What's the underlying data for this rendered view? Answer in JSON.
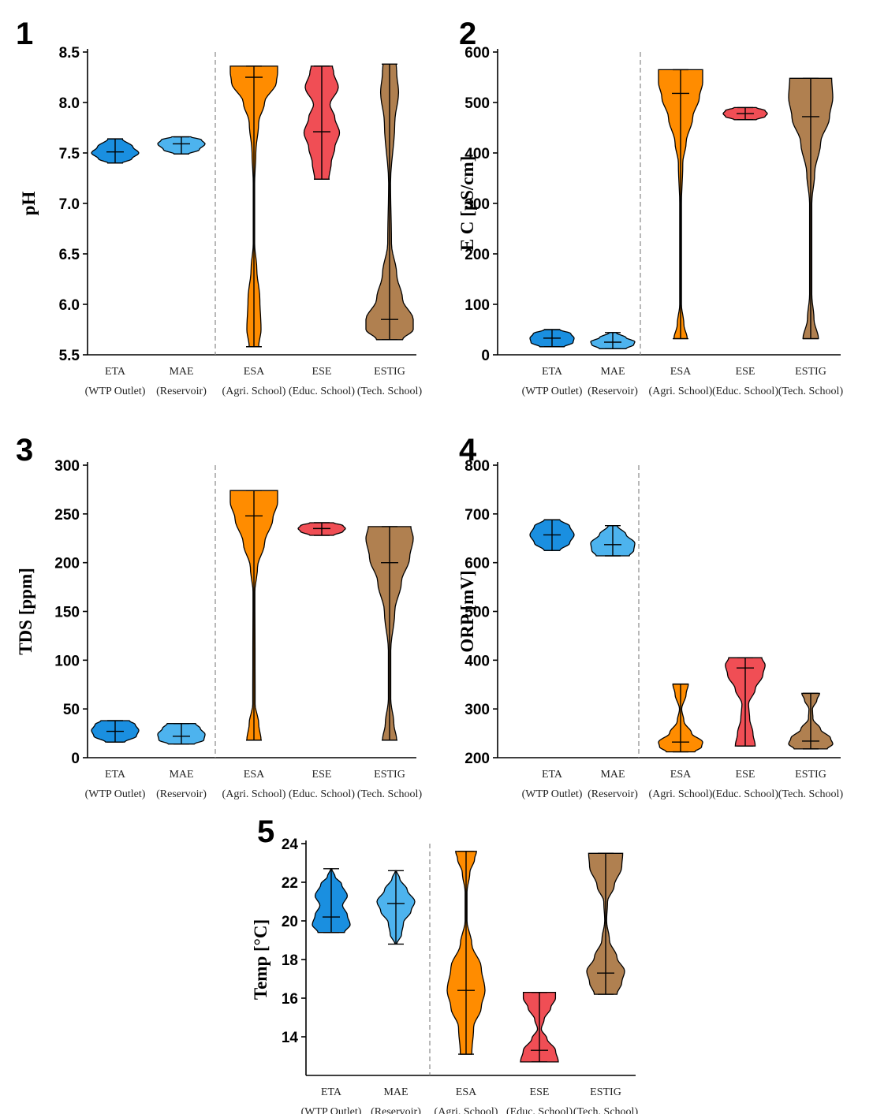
{
  "colors": {
    "ETA": "#1a8fe0",
    "MAE": "#4db3ee",
    "ESA": "#ff8c00",
    "ESE": "#f04e55",
    "ESTIG": "#b08050"
  },
  "categories": [
    {
      "code": "ETA",
      "sub": "(WTP Outlet)"
    },
    {
      "code": "MAE",
      "sub": "(Reservoir)"
    },
    {
      "code": "ESA",
      "sub": "(Agri. School)"
    },
    {
      "code": "ESE",
      "sub": "(Educ. School)"
    },
    {
      "code": "ESTIG",
      "sub": "(Tech. School)"
    }
  ],
  "chart_data": [
    {
      "type": "violin",
      "panel": "1",
      "ylabel": "pH",
      "ylim": [
        5.5,
        8.5
      ],
      "yticks": [
        "5.5",
        "6.0",
        "6.5",
        "7.0",
        "7.5",
        "8.0",
        "8.5"
      ],
      "series": [
        {
          "category": "ETA",
          "min": 7.4,
          "max": 7.64,
          "median": 7.51,
          "profile": [
            [
              7.4,
              0.3
            ],
            [
              7.44,
              0.7
            ],
            [
              7.5,
              1.0
            ],
            [
              7.56,
              0.75
            ],
            [
              7.64,
              0.3
            ]
          ]
        },
        {
          "category": "MAE",
          "min": 7.49,
          "max": 7.66,
          "median": 7.59,
          "profile": [
            [
              7.49,
              0.3
            ],
            [
              7.53,
              0.75
            ],
            [
              7.59,
              1.0
            ],
            [
              7.63,
              0.85
            ],
            [
              7.66,
              0.4
            ]
          ]
        },
        {
          "category": "ESA",
          "min": 5.58,
          "max": 8.36,
          "median": 8.25,
          "profile": [
            [
              5.58,
              0.2
            ],
            [
              5.75,
              0.3
            ],
            [
              6.05,
              0.25
            ],
            [
              6.35,
              0.12
            ],
            [
              6.6,
              0.03
            ],
            [
              7.2,
              0.03
            ],
            [
              7.5,
              0.08
            ],
            [
              7.8,
              0.2
            ],
            [
              8.0,
              0.45
            ],
            [
              8.2,
              0.95
            ],
            [
              8.3,
              1.0
            ],
            [
              8.36,
              1.0
            ]
          ]
        },
        {
          "category": "ESE",
          "min": 7.24,
          "max": 8.36,
          "median": 7.71,
          "profile": [
            [
              7.24,
              0.3
            ],
            [
              7.4,
              0.4
            ],
            [
              7.55,
              0.55
            ],
            [
              7.7,
              0.75
            ],
            [
              7.85,
              0.55
            ],
            [
              7.98,
              0.35
            ],
            [
              8.15,
              0.7
            ],
            [
              8.3,
              0.5
            ],
            [
              8.36,
              0.45
            ]
          ]
        },
        {
          "category": "ESTIG",
          "min": 5.65,
          "max": 8.38,
          "median": 5.85,
          "profile": [
            [
              5.65,
              0.55
            ],
            [
              5.75,
              1.0
            ],
            [
              5.85,
              1.0
            ],
            [
              6.05,
              0.55
            ],
            [
              6.3,
              0.3
            ],
            [
              6.6,
              0.08
            ],
            [
              7.2,
              0.04
            ],
            [
              7.8,
              0.22
            ],
            [
              8.1,
              0.38
            ],
            [
              8.3,
              0.3
            ],
            [
              8.38,
              0.28
            ]
          ]
        }
      ]
    },
    {
      "type": "violin",
      "panel": "2",
      "ylabel": "E C [µS/cm]",
      "ylim": [
        0,
        600
      ],
      "yticks": [
        "0",
        "100",
        "200",
        "300",
        "400",
        "500",
        "600"
      ],
      "series": [
        {
          "category": "ETA",
          "min": 16,
          "max": 50,
          "median": 33,
          "profile": [
            [
              16,
              0.55
            ],
            [
              24,
              0.95
            ],
            [
              33,
              1.0
            ],
            [
              42,
              0.85
            ],
            [
              50,
              0.35
            ]
          ]
        },
        {
          "category": "MAE",
          "min": 12,
          "max": 44,
          "median": 25,
          "profile": [
            [
              12,
              0.6
            ],
            [
              20,
              0.95
            ],
            [
              26,
              1.0
            ],
            [
              34,
              0.6
            ],
            [
              44,
              0.15
            ]
          ]
        },
        {
          "category": "ESA",
          "min": 32,
          "max": 565,
          "median": 518,
          "profile": [
            [
              32,
              0.3
            ],
            [
              60,
              0.15
            ],
            [
              100,
              0.04
            ],
            [
              300,
              0.04
            ],
            [
              380,
              0.1
            ],
            [
              420,
              0.25
            ],
            [
              470,
              0.55
            ],
            [
              510,
              0.85
            ],
            [
              540,
              1.0
            ],
            [
              565,
              1.0
            ]
          ]
        },
        {
          "category": "ESE",
          "min": 466,
          "max": 490,
          "median": 478,
          "profile": [
            [
              466,
              0.5
            ],
            [
              472,
              0.9
            ],
            [
              478,
              1.0
            ],
            [
              484,
              0.9
            ],
            [
              490,
              0.5
            ]
          ]
        },
        {
          "category": "ESTIG",
          "min": 32,
          "max": 548,
          "median": 472,
          "profile": [
            [
              32,
              0.35
            ],
            [
              70,
              0.15
            ],
            [
              120,
              0.05
            ],
            [
              300,
              0.05
            ],
            [
              360,
              0.18
            ],
            [
              420,
              0.45
            ],
            [
              470,
              0.85
            ],
            [
              510,
              1.0
            ],
            [
              548,
              0.95
            ]
          ]
        }
      ]
    },
    {
      "type": "violin",
      "panel": "3",
      "ylabel": "TDS [ppm]",
      "ylim": [
        0,
        300
      ],
      "yticks": [
        "0",
        "50",
        "100",
        "150",
        "200",
        "250",
        "300"
      ],
      "series": [
        {
          "category": "ETA",
          "min": 16,
          "max": 38,
          "median": 27,
          "profile": [
            [
              16,
              0.4
            ],
            [
              22,
              0.9
            ],
            [
              28,
              1.0
            ],
            [
              34,
              0.85
            ],
            [
              38,
              0.6
            ]
          ]
        },
        {
          "category": "MAE",
          "min": 14,
          "max": 35,
          "median": 22,
          "profile": [
            [
              14,
              0.55
            ],
            [
              18,
              0.95
            ],
            [
              24,
              1.0
            ],
            [
              30,
              0.8
            ],
            [
              35,
              0.6
            ]
          ]
        },
        {
          "category": "ESA",
          "min": 18,
          "max": 274,
          "median": 248,
          "profile": [
            [
              18,
              0.3
            ],
            [
              35,
              0.2
            ],
            [
              55,
              0.05
            ],
            [
              170,
              0.04
            ],
            [
              195,
              0.15
            ],
            [
              220,
              0.45
            ],
            [
              245,
              0.8
            ],
            [
              262,
              1.0
            ],
            [
              274,
              1.0
            ]
          ]
        },
        {
          "category": "ESE",
          "min": 228,
          "max": 241,
          "median": 235,
          "profile": [
            [
              228,
              0.5
            ],
            [
              232,
              0.9
            ],
            [
              235,
              1.0
            ],
            [
              238,
              0.9
            ],
            [
              241,
              0.5
            ]
          ]
        },
        {
          "category": "ESTIG",
          "min": 18,
          "max": 237,
          "median": 200,
          "profile": [
            [
              18,
              0.3
            ],
            [
              35,
              0.18
            ],
            [
              60,
              0.05
            ],
            [
              110,
              0.05
            ],
            [
              150,
              0.22
            ],
            [
              180,
              0.5
            ],
            [
              205,
              0.85
            ],
            [
              225,
              1.0
            ],
            [
              237,
              0.9
            ]
          ]
        }
      ]
    },
    {
      "type": "violin",
      "panel": "4",
      "ylabel": "ORP [mV]",
      "ylim": [
        200,
        800
      ],
      "yticks": [
        "200",
        "300",
        "400",
        "500",
        "600",
        "700",
        "800"
      ],
      "series": [
        {
          "category": "ETA",
          "min": 625,
          "max": 688,
          "median": 657,
          "profile": [
            [
              625,
              0.35
            ],
            [
              640,
              0.8
            ],
            [
              657,
              1.0
            ],
            [
              675,
              0.8
            ],
            [
              688,
              0.35
            ]
          ]
        },
        {
          "category": "MAE",
          "min": 614,
          "max": 676,
          "median": 637,
          "profile": [
            [
              614,
              0.75
            ],
            [
              625,
              0.95
            ],
            [
              640,
              1.0
            ],
            [
              658,
              0.6
            ],
            [
              676,
              0.2
            ]
          ]
        },
        {
          "category": "ESA",
          "min": 212,
          "max": 351,
          "median": 232,
          "profile": [
            [
              212,
              0.65
            ],
            [
              222,
              0.95
            ],
            [
              232,
              1.0
            ],
            [
              250,
              0.5
            ],
            [
              275,
              0.15
            ],
            [
              300,
              0.05
            ],
            [
              330,
              0.25
            ],
            [
              351,
              0.35
            ]
          ]
        },
        {
          "category": "ESE",
          "min": 224,
          "max": 405,
          "median": 384,
          "profile": [
            [
              224,
              0.45
            ],
            [
              250,
              0.35
            ],
            [
              280,
              0.2
            ],
            [
              310,
              0.15
            ],
            [
              340,
              0.45
            ],
            [
              370,
              0.8
            ],
            [
              390,
              0.9
            ],
            [
              405,
              0.75
            ]
          ]
        },
        {
          "category": "ESTIG",
          "min": 218,
          "max": 332,
          "median": 234,
          "profile": [
            [
              218,
              0.75
            ],
            [
              228,
              1.0
            ],
            [
              240,
              0.9
            ],
            [
              258,
              0.45
            ],
            [
              280,
              0.1
            ],
            [
              300,
              0.08
            ],
            [
              318,
              0.28
            ],
            [
              332,
              0.4
            ]
          ]
        }
      ]
    },
    {
      "type": "violin",
      "panel": "5",
      "ylabel": "Temp [°C]",
      "ylim": [
        12,
        24
      ],
      "yticks": [
        "14",
        "16",
        "18",
        "20",
        "22",
        "24"
      ],
      "series": [
        {
          "category": "ETA",
          "min": 19.4,
          "max": 22.7,
          "median": 20.2,
          "profile": [
            [
              19.4,
              0.7
            ],
            [
              19.8,
              1.0
            ],
            [
              20.3,
              0.85
            ],
            [
              20.8,
              0.6
            ],
            [
              21.3,
              0.85
            ],
            [
              21.9,
              0.55
            ],
            [
              22.3,
              0.2
            ],
            [
              22.7,
              0.03
            ]
          ]
        },
        {
          "category": "MAE",
          "min": 18.8,
          "max": 22.6,
          "median": 20.9,
          "profile": [
            [
              18.8,
              0.05
            ],
            [
              19.3,
              0.3
            ],
            [
              19.9,
              0.4
            ],
            [
              20.5,
              0.8
            ],
            [
              21.0,
              1.0
            ],
            [
              21.6,
              0.6
            ],
            [
              22.2,
              0.2
            ],
            [
              22.6,
              0.03
            ]
          ]
        },
        {
          "category": "ESA",
          "min": 13.1,
          "max": 23.6,
          "median": 16.4,
          "profile": [
            [
              13.1,
              0.3
            ],
            [
              14.5,
              0.4
            ],
            [
              15.5,
              0.8
            ],
            [
              16.4,
              1.0
            ],
            [
              17.6,
              0.8
            ],
            [
              18.8,
              0.3
            ],
            [
              20.0,
              0.05
            ],
            [
              21.5,
              0.05
            ],
            [
              22.5,
              0.2
            ],
            [
              23.2,
              0.45
            ],
            [
              23.6,
              0.55
            ]
          ]
        },
        {
          "category": "ESE",
          "min": 12.7,
          "max": 16.3,
          "median": 13.3,
          "profile": [
            [
              12.7,
              1.0
            ],
            [
              13.3,
              0.85
            ],
            [
              13.9,
              0.4
            ],
            [
              14.4,
              0.1
            ],
            [
              14.9,
              0.25
            ],
            [
              15.5,
              0.6
            ],
            [
              16.0,
              0.85
            ],
            [
              16.3,
              0.85
            ]
          ]
        },
        {
          "category": "ESTIG",
          "min": 16.2,
          "max": 23.5,
          "median": 17.3,
          "profile": [
            [
              16.2,
              0.6
            ],
            [
              16.8,
              0.85
            ],
            [
              17.4,
              1.0
            ],
            [
              18.1,
              0.6
            ],
            [
              19.0,
              0.2
            ],
            [
              20.0,
              0.05
            ],
            [
              21.0,
              0.1
            ],
            [
              21.8,
              0.45
            ],
            [
              22.8,
              0.85
            ],
            [
              23.5,
              0.9
            ]
          ]
        }
      ]
    }
  ]
}
